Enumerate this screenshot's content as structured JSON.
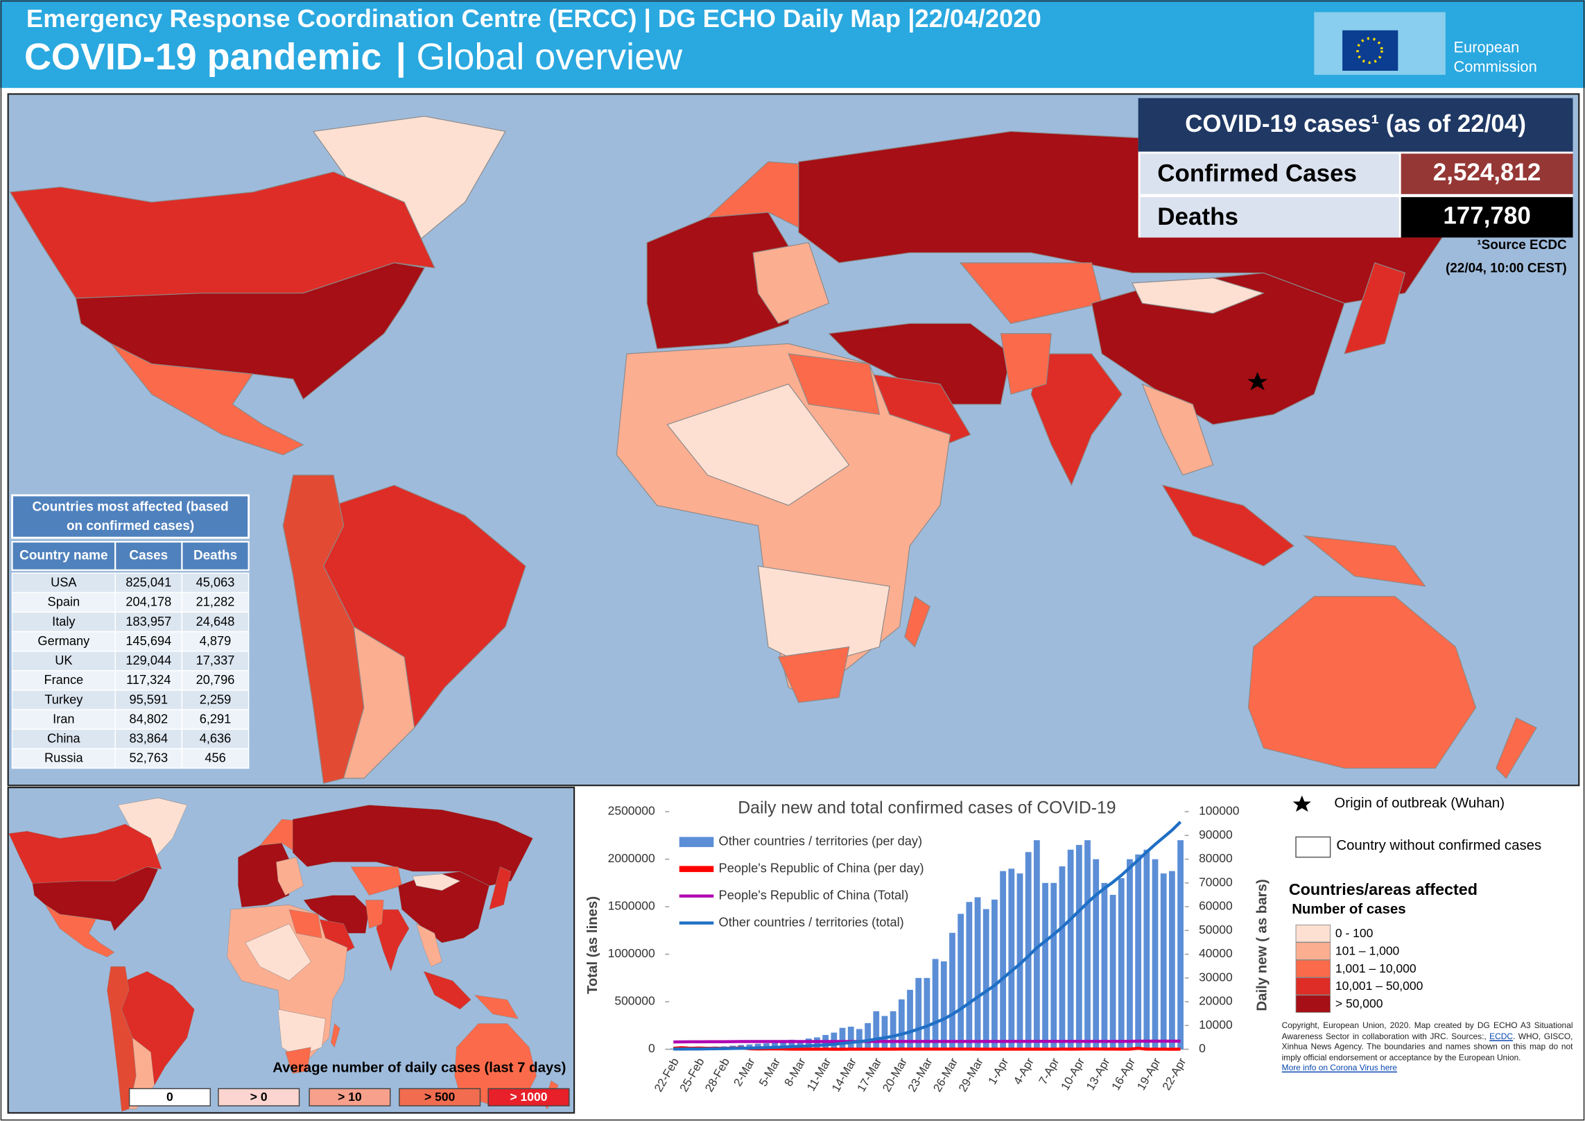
{
  "header": {
    "line1": "Emergency Response Coordination Centre (ERCC) | DG ECHO Daily Map |22/04/2020",
    "line2_bold": "COVID-19 pandemic",
    "separator": "|",
    "line2_rest": "Global overview",
    "logo": [
      "European",
      "Commission"
    ]
  },
  "summary": {
    "title": "COVID-19 cases¹ (as of 22/04)",
    "rows": [
      {
        "label": "Confirmed Cases",
        "value": "2,524,812",
        "color": "#953735"
      },
      {
        "label": "Deaths",
        "value": "177,780",
        "color": "#000000"
      }
    ],
    "source": [
      "¹Source ECDC",
      "(22/04, 10:00 CEST)"
    ]
  },
  "table": {
    "title": [
      "Countries most affected (based",
      "on confirmed cases)"
    ],
    "columns": [
      "Country name",
      "Cases",
      "Deaths"
    ],
    "rows": [
      [
        "USA",
        "825,041",
        "45,063"
      ],
      [
        "Spain",
        "204,178",
        "21,282"
      ],
      [
        "Italy",
        "183,957",
        "24,648"
      ],
      [
        "Germany",
        "145,694",
        "4,879"
      ],
      [
        "UK",
        "129,044",
        "17,337"
      ],
      [
        "France",
        "117,324",
        "20,796"
      ],
      [
        "Turkey",
        "95,591",
        "2,259"
      ],
      [
        "Iran",
        "84,802",
        "6,291"
      ],
      [
        "China",
        "83,864",
        "4,636"
      ],
      [
        "Russia",
        "52,763",
        "456"
      ]
    ]
  },
  "chart_data": {
    "type": "combo",
    "title": "Daily new and total confirmed cases of COVID-19",
    "ylabel": "Total (as lines)",
    "y2label": "Daily new ( as bars)",
    "categories": [
      "22-Feb",
      null,
      null,
      "25-Feb",
      null,
      null,
      "28-Feb",
      null,
      null,
      "2-Mar",
      null,
      null,
      "5-Mar",
      null,
      null,
      "8-Mar",
      null,
      null,
      "11-Mar",
      null,
      null,
      "14-Mar",
      null,
      null,
      "17-Mar",
      null,
      null,
      "20-Mar",
      null,
      null,
      "23-Mar",
      null,
      null,
      "26-Mar",
      null,
      null,
      "29-Mar",
      null,
      null,
      "1-Apr",
      null,
      null,
      "4-Apr",
      null,
      null,
      "7-Apr",
      null,
      null,
      "10-Apr",
      null,
      null,
      "13-Apr",
      null,
      null,
      "16-Apr",
      null,
      null,
      "19-Apr",
      null,
      null,
      "22-Apr"
    ],
    "ylim": [
      0,
      2500000
    ],
    "yticks": [
      0,
      500000,
      1000000,
      1500000,
      2000000,
      2500000
    ],
    "y2lim": [
      0,
      100000
    ],
    "y2ticks": [
      0,
      10000,
      20000,
      30000,
      40000,
      50000,
      60000,
      70000,
      80000,
      90000,
      100000
    ],
    "series": [
      {
        "name": "Other countries / territories (per day)",
        "type": "bar",
        "axis": "y2",
        "color": "#5b8ed6",
        "values": [
          300,
          500,
          600,
          800,
          900,
          1100,
          1200,
          1500,
          1800,
          2000,
          2300,
          2500,
          2800,
          3500,
          4000,
          3800,
          4500,
          5000,
          6000,
          7000,
          9000,
          9500,
          8500,
          11000,
          16000,
          14000,
          16000,
          21000,
          25000,
          30000,
          30000,
          38000,
          37000,
          49000,
          57000,
          62000,
          64000,
          59000,
          63000,
          75000,
          76000,
          74000,
          83000,
          88000,
          70000,
          70000,
          77000,
          84000,
          86000,
          88000,
          80000,
          70000,
          65000,
          72000,
          80000,
          82000,
          84000,
          80000,
          74000,
          75000,
          88000
        ]
      },
      {
        "name": "People's Republic of China (per day)",
        "type": "line",
        "axis": "y2",
        "color": "#ff0000",
        "values": [
          400,
          650,
          410,
          510,
          410,
          430,
          330,
          430,
          570,
          200,
          120,
          140,
          140,
          100,
          45,
          20,
          30,
          20,
          25,
          10,
          10,
          20,
          20,
          30,
          15,
          40,
          45,
          60,
          50,
          80,
          80,
          80,
          70,
          70,
          55,
          50,
          45,
          30,
          30,
          35,
          30,
          30,
          25,
          25,
          30,
          40,
          60,
          45,
          60,
          90,
          95,
          80,
          50,
          30,
          40,
          400,
          20,
          15,
          15,
          10,
          30
        ]
      },
      {
        "name": "People's Republic of China (Total)",
        "type": "line",
        "axis": "y",
        "color": "#b000b0",
        "values": [
          76900,
          77550,
          77960,
          78470,
          78880,
          79310,
          79640,
          80070,
          80640,
          80840,
          80960,
          81100,
          81240,
          81340,
          81380,
          81400,
          81430,
          81450,
          81470,
          81480,
          81490,
          81510,
          81530,
          81560,
          81570,
          81610,
          81660,
          81720,
          81770,
          81850,
          81930,
          82010,
          82080,
          82150,
          82200,
          82250,
          82300,
          82330,
          82360,
          82390,
          82420,
          82450,
          82480,
          82500,
          82530,
          82570,
          82630,
          82680,
          82740,
          82830,
          82920,
          83000,
          83050,
          83080,
          83120,
          84420,
          84440,
          84460,
          84470,
          84480,
          84510
        ]
      },
      {
        "name": "Other countries / territories (total)",
        "type": "line",
        "axis": "y",
        "color": "#1f6fc5",
        "values": [
          1500,
          2000,
          2500,
          3000,
          4000,
          5000,
          6500,
          8000,
          10000,
          12000,
          14500,
          17000,
          20000,
          23500,
          27500,
          31000,
          35000,
          40000,
          46000,
          53000,
          62000,
          71000,
          80000,
          91000,
          107000,
          121000,
          137000,
          158000,
          183000,
          213000,
          243000,
          281000,
          318000,
          367000,
          424000,
          486000,
          550000,
          609000,
          672000,
          747000,
          823000,
          897000,
          980000,
          1068000,
          1138000,
          1208000,
          1285000,
          1369000,
          1455000,
          1543000,
          1623000,
          1693000,
          1758000,
          1830000,
          1910000,
          1992000,
          2076000,
          2156000,
          2230000,
          2305000,
          2393000
        ]
      }
    ]
  },
  "legend": {
    "origin": "Origin of outbreak (Wuhan)",
    "no_cases": "Country without confirmed cases",
    "title": "Countries/areas affected",
    "subtitle": "Number of cases",
    "classes": [
      {
        "label": "0 - 100",
        "color": "#fee0d2"
      },
      {
        "label": "101 – 1,000",
        "color": "#fcae91"
      },
      {
        "label": "1,001 – 10,000",
        "color": "#fb6a4a"
      },
      {
        "label": "10,001 – 50,000",
        "color": "#de2d26"
      },
      {
        "label": "> 50,000",
        "color": "#a50f15"
      }
    ]
  },
  "minimap": {
    "title": "Average number of daily cases (last 7 days)",
    "classes": [
      {
        "label": "0",
        "color": "#ffffff"
      },
      {
        "label": "> 0",
        "color": "#fcd5d0"
      },
      {
        "label": "> 10",
        "color": "#f7a08c"
      },
      {
        "label": "> 500",
        "color": "#f26c4f"
      },
      {
        "label": "> 1000",
        "color": "#e8202a"
      }
    ]
  },
  "copyright": {
    "before": "Copyright, European Union, 2020. Map created by DG ECHO A3 Situational Awareness Sector in collaboration with JRC. Sources:,",
    "link": "ECDC",
    "after": ". WHO, GISCO, Xinhua News Agency. The boundaries and names shown on this map do not imply official endorsement or acceptance by the European Union.",
    "more": "More info on Corona Virus here"
  }
}
